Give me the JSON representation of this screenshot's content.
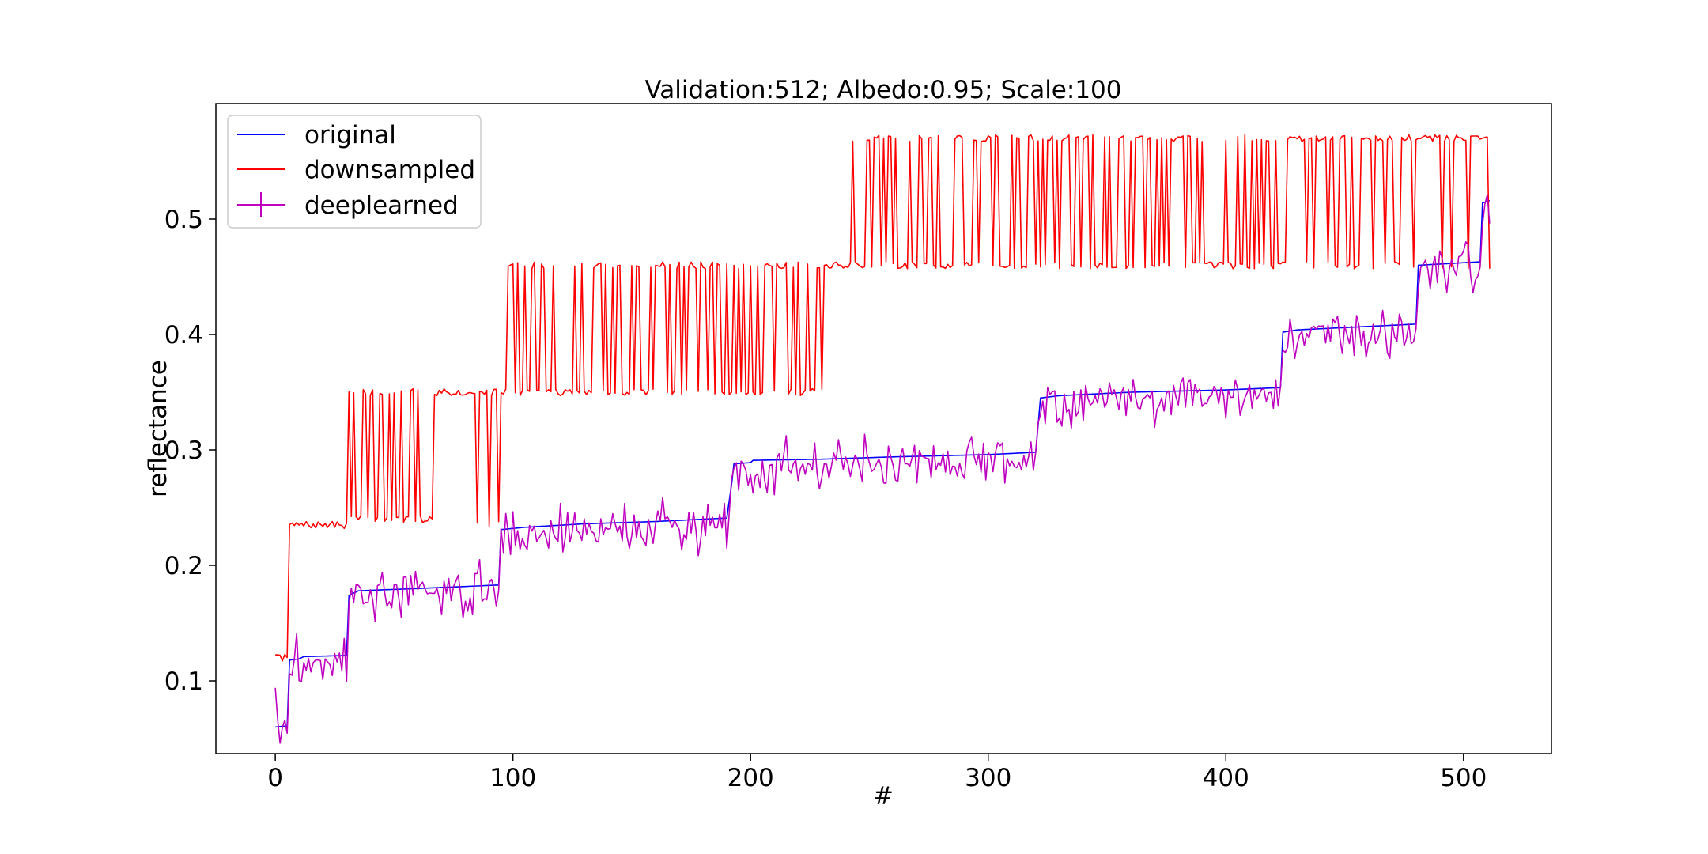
{
  "chart_data": {
    "type": "line",
    "title": "Validation:512; Albedo:0.95; Scale:100",
    "xlabel": "#",
    "ylabel": "reflectance",
    "xlim": [
      -25,
      537
    ],
    "ylim": [
      0.037,
      0.6
    ],
    "xticks": [
      0,
      100,
      200,
      300,
      400,
      500
    ],
    "xtick_labels": [
      "0",
      "100",
      "200",
      "300",
      "400",
      "500"
    ],
    "yticks": [
      0.1,
      0.2,
      0.3,
      0.4,
      0.5
    ],
    "ytick_labels": [
      "0.1",
      "0.2",
      "0.3",
      "0.4",
      "0.5"
    ],
    "grid": false,
    "legend_position": "upper-left",
    "series": [
      {
        "name": "original",
        "color": "#0000ff",
        "marker": "none",
        "points": [
          [
            0,
            0.06
          ],
          [
            5,
            0.061
          ],
          [
            6,
            0.118
          ],
          [
            10,
            0.119
          ],
          [
            12,
            0.121
          ],
          [
            30,
            0.122
          ],
          [
            31,
            0.174
          ],
          [
            35,
            0.178
          ],
          [
            60,
            0.18
          ],
          [
            94,
            0.183
          ],
          [
            95,
            0.231
          ],
          [
            105,
            0.233
          ],
          [
            130,
            0.236
          ],
          [
            160,
            0.238
          ],
          [
            190,
            0.241
          ],
          [
            192,
            0.27
          ],
          [
            193,
            0.288
          ],
          [
            200,
            0.289
          ],
          [
            201,
            0.291
          ],
          [
            230,
            0.292
          ],
          [
            260,
            0.294
          ],
          [
            300,
            0.296
          ],
          [
            320,
            0.298
          ],
          [
            322,
            0.345
          ],
          [
            330,
            0.347
          ],
          [
            360,
            0.35
          ],
          [
            400,
            0.352
          ],
          [
            423,
            0.354
          ],
          [
            424,
            0.402
          ],
          [
            430,
            0.404
          ],
          [
            460,
            0.407
          ],
          [
            480,
            0.409
          ],
          [
            481,
            0.46
          ],
          [
            490,
            0.461
          ],
          [
            507,
            0.463
          ],
          [
            508,
            0.514
          ],
          [
            511,
            0.516
          ]
        ]
      },
      {
        "name": "downsampled",
        "color": "#ff0000",
        "marker": "none",
        "pattern": {
          "seed": 7,
          "noise": 0.003,
          "segments": [
            {
              "from": 0,
              "to": 5,
              "base": 0.12,
              "alt": 0.12,
              "p": 0.0
            },
            {
              "from": 6,
              "to": 30,
              "base": 0.235,
              "alt": 0.12,
              "p": 0.08
            },
            {
              "from": 31,
              "to": 70,
              "base": 0.24,
              "alt": 0.35,
              "p": 0.45
            },
            {
              "from": 71,
              "to": 97,
              "base": 0.35,
              "alt": 0.235,
              "p": 0.06
            },
            {
              "from": 98,
              "to": 135,
              "base": 0.35,
              "alt": 0.46,
              "p": 0.35
            },
            {
              "from": 136,
              "to": 230,
              "base": 0.35,
              "alt": 0.46,
              "p": 0.55
            },
            {
              "from": 231,
              "to": 320,
              "base": 0.46,
              "alt": 0.57,
              "p": 0.4
            },
            {
              "from": 321,
              "to": 420,
              "base": 0.46,
              "alt": 0.57,
              "p": 0.5
            },
            {
              "from": 421,
              "to": 511,
              "base": 0.57,
              "alt": 0.46,
              "p": 0.25
            }
          ]
        }
      },
      {
        "name": "deeplearned",
        "color": "#bf00bf",
        "marker": "vertical-errorbar",
        "noise": {
          "seed": 3,
          "amplitude": 0.02,
          "start": 0.094
        }
      }
    ]
  }
}
